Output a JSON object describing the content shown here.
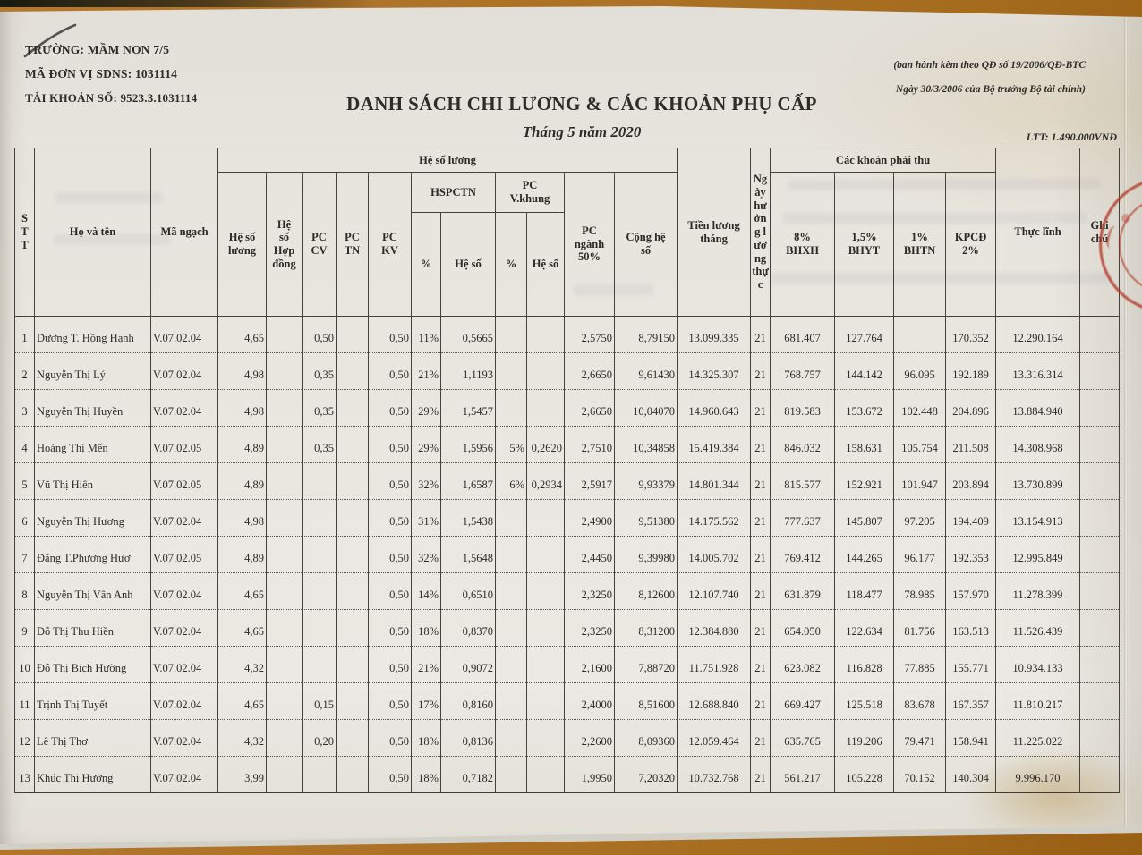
{
  "header": {
    "school": "TRƯỜNG: MẦM NON 7/5",
    "unit_code": "MÃ ĐƠN VỊ SDNS: 1031114",
    "account": "TÀI KHOẢN SỐ: 9523.3.1031114",
    "title": "DANH SÁCH CHI LƯƠNG & CÁC KHOẢN PHỤ CẤP",
    "subtitle": "Tháng 5 năm 2020",
    "decree_line1": "(ban hành kèm theo QĐ số 19/2006/QĐ-BTC",
    "decree_line2": "Ngày 30/3/2006 của Bộ trưởng Bộ tài chính)",
    "ltt": "LTT: 1.490.000VNĐ"
  },
  "colors": {
    "table_surface": "#ad7226",
    "paper": "#e9e6e0",
    "ink": "#2e2c27",
    "stamp_red": "#b02f1e"
  },
  "table": {
    "headers": {
      "stt": "S\nT\nT",
      "name": "Họ và tên",
      "ma_ngach": "Mã ngạch",
      "group_he_so_luong": "Hệ số lương",
      "he_so_luong": "Hệ số\nlương",
      "he_so_hop_dong": "Hệ\nsố\nHợp\nđồng",
      "pc_cv": "PC\nCV",
      "pc_tn": "PC\nTN",
      "pc_kv": "PC\nKV",
      "hspctn": "HSPCTN",
      "pc_v_khung": "PC\nV.khung",
      "pct1": "%",
      "he_so1": "Hệ số",
      "pct2": "%",
      "he_so2": "Hệ số",
      "pc_nganh": "PC\nngành\n50%",
      "cong_he_so": "Cộng hệ\nsố",
      "tien_luong_thang": "Tiền lương\ntháng",
      "ngay_huong": "Ngày hưởng lương thực",
      "group_phai_thu": "Các khoản phải thu",
      "bhxh": "8%\nBHXH",
      "bhyt": "1,5%\nBHYT",
      "bhtn": "1%\nBHTN",
      "kpcd": "KPCĐ\n2%",
      "thuc_linh": "Thực lĩnh",
      "ghi_chu": "Ghi chú"
    },
    "rows": [
      [
        "1",
        "Dương T. Hồng Hạnh",
        "V.07.02.04",
        "4,65",
        "",
        "0,50",
        "",
        "0,50",
        "11%",
        "0,5665",
        "",
        "",
        "2,5750",
        "8,79150",
        "13.099.335",
        "21",
        "681.407",
        "127.764",
        "",
        "170.352",
        "12.290.164",
        ""
      ],
      [
        "2",
        "Nguyễn Thị Lý",
        "V.07.02.04",
        "4,98",
        "",
        "0,35",
        "",
        "0,50",
        "21%",
        "1,1193",
        "",
        "",
        "2,6650",
        "9,61430",
        "14.325.307",
        "21",
        "768.757",
        "144.142",
        "96.095",
        "192.189",
        "13.316.314",
        ""
      ],
      [
        "3",
        "Nguyễn Thị Huyền",
        "V.07.02.04",
        "4,98",
        "",
        "0,35",
        "",
        "0,50",
        "29%",
        "1,5457",
        "",
        "",
        "2,6650",
        "10,04070",
        "14.960.643",
        "21",
        "819.583",
        "153.672",
        "102.448",
        "204.896",
        "13.884.940",
        ""
      ],
      [
        "4",
        "Hoàng Thị Mến",
        "V.07.02.05",
        "4,89",
        "",
        "0,35",
        "",
        "0,50",
        "29%",
        "1,5956",
        "5%",
        "0,2620",
        "2,7510",
        "10,34858",
        "15.419.384",
        "21",
        "846.032",
        "158.631",
        "105.754",
        "211.508",
        "14.308.968",
        ""
      ],
      [
        "5",
        "Vũ Thị Hiên",
        "V.07.02.05",
        "4,89",
        "",
        "",
        "",
        "0,50",
        "32%",
        "1,6587",
        "6%",
        "0,2934",
        "2,5917",
        "9,93379",
        "14.801.344",
        "21",
        "815.577",
        "152.921",
        "101.947",
        "203.894",
        "13.730.899",
        ""
      ],
      [
        "6",
        "Nguyễn Thị Hương",
        "V.07.02.04",
        "4,98",
        "",
        "",
        "",
        "0,50",
        "31%",
        "1,5438",
        "",
        "",
        "2,4900",
        "9,51380",
        "14.175.562",
        "21",
        "777.637",
        "145.807",
        "97.205",
        "194.409",
        "13.154.913",
        ""
      ],
      [
        "7",
        "Đặng T.Phương Hươ",
        "V.07.02.05",
        "4,89",
        "",
        "",
        "",
        "0,50",
        "32%",
        "1,5648",
        "",
        "",
        "2,4450",
        "9,39980",
        "14.005.702",
        "21",
        "769.412",
        "144.265",
        "96.177",
        "192.353",
        "12.995.849",
        ""
      ],
      [
        "8",
        "Nguyễn Thị Vân Anh",
        "V.07.02.04",
        "4,65",
        "",
        "",
        "",
        "0,50",
        "14%",
        "0,6510",
        "",
        "",
        "2,3250",
        "8,12600",
        "12.107.740",
        "21",
        "631.879",
        "118.477",
        "78.985",
        "157.970",
        "11.278.399",
        ""
      ],
      [
        "9",
        "Đỗ Thị Thu Hiền",
        "V.07.02.04",
        "4,65",
        "",
        "",
        "",
        "0,50",
        "18%",
        "0,8370",
        "",
        "",
        "2,3250",
        "8,31200",
        "12.384.880",
        "21",
        "654.050",
        "122.634",
        "81.756",
        "163.513",
        "11.526.439",
        ""
      ],
      [
        "10",
        "Đỗ Thị Bích Hường",
        "V.07.02.04",
        "4,32",
        "",
        "",
        "",
        "0,50",
        "21%",
        "0,9072",
        "",
        "",
        "2,1600",
        "7,88720",
        "11.751.928",
        "21",
        "623.082",
        "116.828",
        "77.885",
        "155.771",
        "10.934.133",
        ""
      ],
      [
        "11",
        "Trịnh Thị Tuyết",
        "V.07.02.04",
        "4,65",
        "",
        "0,15",
        "",
        "0,50",
        "17%",
        "0,8160",
        "",
        "",
        "2,4000",
        "8,51600",
        "12.688.840",
        "21",
        "669.427",
        "125.518",
        "83.678",
        "167.357",
        "11.810.217",
        ""
      ],
      [
        "12",
        "Lê Thị Thơ",
        "V.07.02.04",
        "4,32",
        "",
        "0,20",
        "",
        "0,50",
        "18%",
        "0,8136",
        "",
        "",
        "2,2600",
        "8,09360",
        "12.059.464",
        "21",
        "635.765",
        "119.206",
        "79.471",
        "158.941",
        "11.225.022",
        ""
      ],
      [
        "13",
        "Khúc Thị Hường",
        "V.07.02.04",
        "3,99",
        "",
        "",
        "",
        "0,50",
        "18%",
        "0,7182",
        "",
        "",
        "1,9950",
        "7,20320",
        "10.732.768",
        "21",
        "561.217",
        "105.228",
        "70.152",
        "140.304",
        "9.996.170",
        ""
      ]
    ]
  }
}
